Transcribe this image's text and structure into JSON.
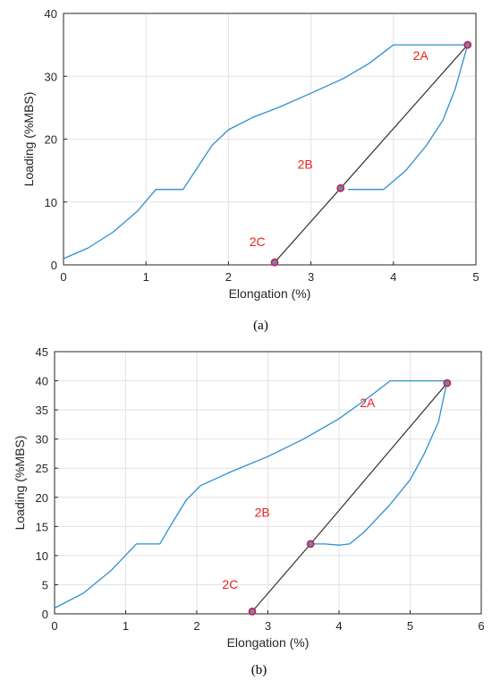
{
  "chart_data": [
    {
      "type": "line",
      "panel_caption": "(a)",
      "xlabel": "Elongation (%)",
      "ylabel": "Loading (%MBS)",
      "xlim": [
        0,
        5
      ],
      "ylim": [
        0,
        40
      ],
      "xticks": [
        0,
        1,
        2,
        3,
        4,
        5
      ],
      "yticks": [
        0,
        10,
        20,
        30,
        40
      ],
      "grid": true,
      "colors": {
        "curve": "#2f8fcf",
        "line": "#333333",
        "marker_fill": "#6b7fd0",
        "marker_edge": "#d0202a",
        "annotation": "#e8211d"
      },
      "series": [
        {
          "values": [
            [
              0,
              1
            ],
            [
              0.3,
              2.7
            ],
            [
              0.6,
              5.2
            ],
            [
              0.9,
              8.6
            ],
            [
              1.12,
              12
            ],
            [
              1.45,
              12
            ],
            [
              1.6,
              15
            ],
            [
              1.8,
              19
            ],
            [
              2.0,
              21.5
            ],
            [
              2.3,
              23.5
            ],
            [
              2.6,
              25
            ],
            [
              3.0,
              27.3
            ],
            [
              3.4,
              29.7
            ],
            [
              3.7,
              32
            ],
            [
              3.9,
              34
            ],
            [
              4.0,
              35
            ],
            [
              4.9,
              35
            ]
          ]
        },
        {
          "values": [
            [
              4.9,
              35
            ],
            [
              4.75,
              28
            ],
            [
              4.6,
              23
            ],
            [
              4.4,
              19
            ],
            [
              4.15,
              15
            ],
            [
              3.88,
              12
            ],
            [
              3.45,
              12
            ]
          ]
        },
        {
          "values": [
            [
              2.56,
              0.4
            ],
            [
              3.36,
              12.2
            ],
            [
              4.9,
              35
            ]
          ]
        }
      ],
      "markers": [
        [
          4.9,
          35
        ],
        [
          3.36,
          12.2
        ],
        [
          2.56,
          0.4
        ]
      ],
      "annotations": [
        {
          "text": "2A",
          "x": 4.33,
          "y": 32.6
        },
        {
          "text": "2B",
          "x": 2.93,
          "y": 15.3
        },
        {
          "text": "2C",
          "x": 2.35,
          "y": 3.0
        }
      ]
    },
    {
      "type": "line",
      "panel_caption": "(b)",
      "xlabel": "Elongation (%)",
      "ylabel": "Loading (%MBS)",
      "xlim": [
        0,
        6
      ],
      "ylim": [
        0,
        45
      ],
      "xticks": [
        0,
        1,
        2,
        3,
        4,
        5,
        6
      ],
      "yticks": [
        0,
        5,
        10,
        15,
        20,
        25,
        30,
        35,
        40,
        45
      ],
      "grid": true,
      "colors": {
        "curve": "#2f8fcf",
        "line": "#333333",
        "marker_fill": "#6b7fd0",
        "marker_edge": "#d0202a",
        "annotation": "#e8211d"
      },
      "series": [
        {
          "values": [
            [
              0,
              1
            ],
            [
              0.4,
              3.5
            ],
            [
              0.8,
              7.5
            ],
            [
              1.15,
              12
            ],
            [
              1.48,
              12
            ],
            [
              1.6,
              14.5
            ],
            [
              1.85,
              19.5
            ],
            [
              2.05,
              22
            ],
            [
              2.5,
              24.5
            ],
            [
              3.0,
              27
            ],
            [
              3.5,
              30
            ],
            [
              4.0,
              33.5
            ],
            [
              4.4,
              37
            ],
            [
              4.72,
              40
            ],
            [
              5.52,
              40
            ]
          ]
        },
        {
          "values": [
            [
              5.52,
              40
            ],
            [
              5.4,
              33
            ],
            [
              5.2,
              27.5
            ],
            [
              5.0,
              23
            ],
            [
              4.7,
              18.5
            ],
            [
              4.35,
              14
            ],
            [
              4.15,
              12
            ],
            [
              4.0,
              11.8
            ],
            [
              3.8,
              12
            ],
            [
              3.6,
              12
            ]
          ]
        },
        {
          "values": [
            [
              2.78,
              0.4
            ],
            [
              3.6,
              12
            ],
            [
              5.52,
              39.6
            ]
          ]
        }
      ],
      "markers": [
        [
          5.52,
          39.6
        ],
        [
          3.6,
          12
        ],
        [
          2.78,
          0.4
        ]
      ],
      "annotations": [
        {
          "text": "2A",
          "x": 4.4,
          "y": 35.5
        },
        {
          "text": "2B",
          "x": 2.92,
          "y": 16.7
        },
        {
          "text": "2C",
          "x": 2.47,
          "y": 4.3
        }
      ]
    }
  ]
}
